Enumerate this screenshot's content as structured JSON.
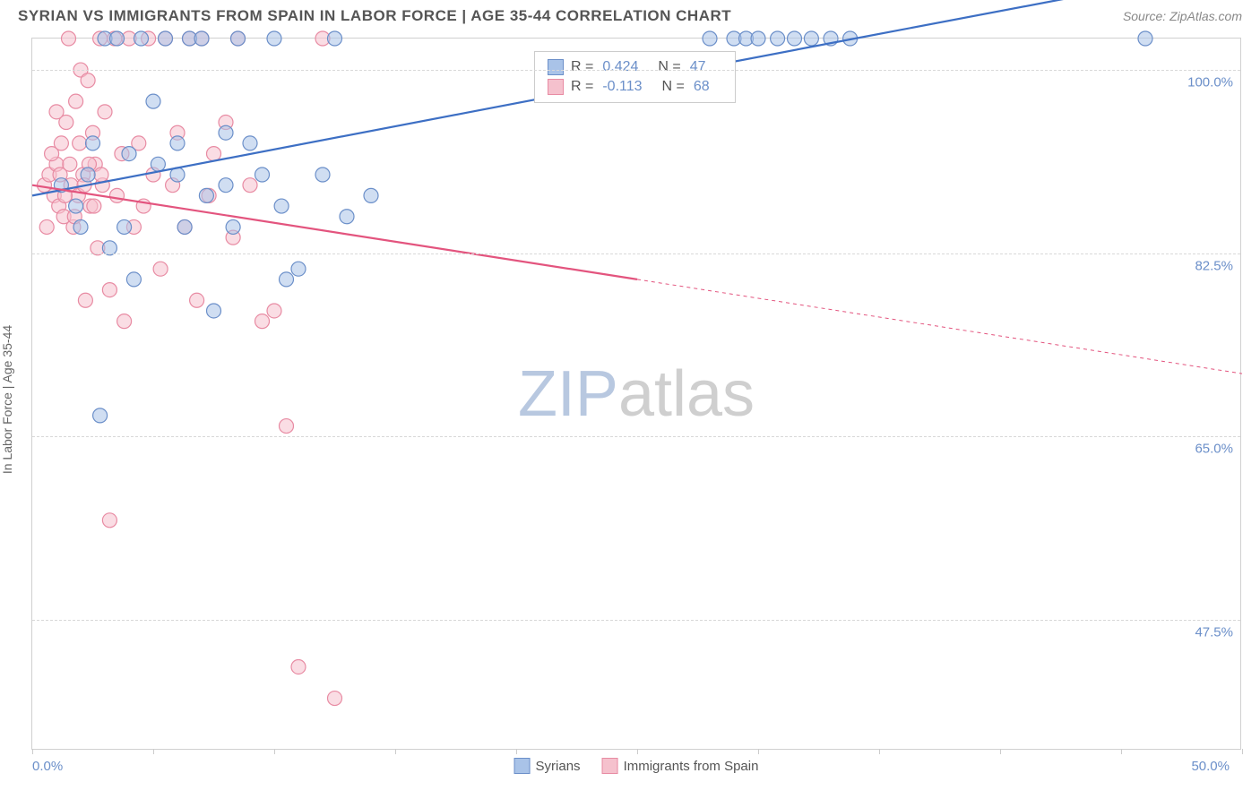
{
  "header": {
    "title": "SYRIAN VS IMMIGRANTS FROM SPAIN IN LABOR FORCE | AGE 35-44 CORRELATION CHART",
    "source": "Source: ZipAtlas.com"
  },
  "chart": {
    "type": "scatter",
    "y_axis_label": "In Labor Force | Age 35-44",
    "watermark_zip": "ZIP",
    "watermark_atlas": "atlas",
    "xlim": [
      0,
      50
    ],
    "ylim": [
      35,
      103
    ],
    "x_ticks": [
      0,
      5,
      10,
      15,
      20,
      25,
      30,
      35,
      40,
      45,
      50
    ],
    "x_tick_labels": {
      "0": "0.0%",
      "50": "50.0%"
    },
    "y_ticks": [
      47.5,
      65.0,
      82.5,
      100.0
    ],
    "y_tick_labels": [
      "47.5%",
      "65.0%",
      "82.5%",
      "100.0%"
    ],
    "background_color": "#ffffff",
    "grid_color": "#d8d8d8",
    "colors": {
      "blue_fill": "#a9c3e8",
      "blue_stroke": "#6b8fc9",
      "pink_fill": "#f5c1cd",
      "pink_stroke": "#e88ba3",
      "blue_line": "#3d6fc4",
      "pink_line": "#e3547e"
    },
    "marker_radius": 8,
    "marker_opacity": 0.55,
    "line_width": 2.2,
    "series": [
      {
        "name": "Syrians",
        "color_key": "blue",
        "R": "0.424",
        "N": "47",
        "trend": {
          "x1": 0,
          "y1": 88,
          "x2": 34,
          "y2": 103,
          "extrap_x2": 50,
          "extrap_y2": 110
        },
        "points": [
          [
            1.2,
            89
          ],
          [
            1.8,
            87
          ],
          [
            2.0,
            85
          ],
          [
            2.3,
            90
          ],
          [
            2.5,
            93
          ],
          [
            3.0,
            103
          ],
          [
            3.2,
            83
          ],
          [
            3.5,
            103
          ],
          [
            3.8,
            85
          ],
          [
            4.0,
            92
          ],
          [
            4.2,
            80
          ],
          [
            4.5,
            103
          ],
          [
            5.0,
            97
          ],
          [
            5.2,
            91
          ],
          [
            5.5,
            103
          ],
          [
            6.0,
            90
          ],
          [
            6.3,
            85
          ],
          [
            6.5,
            103
          ],
          [
            7.0,
            103
          ],
          [
            7.2,
            88
          ],
          [
            7.5,
            77
          ],
          [
            8.0,
            89
          ],
          [
            8.3,
            85
          ],
          [
            8.5,
            103
          ],
          [
            9.0,
            93
          ],
          [
            9.5,
            90
          ],
          [
            10.0,
            103
          ],
          [
            10.3,
            87
          ],
          [
            10.5,
            80
          ],
          [
            11.0,
            81
          ],
          [
            12.0,
            90
          ],
          [
            12.5,
            103
          ],
          [
            13.0,
            86
          ],
          [
            14.0,
            88
          ],
          [
            28.0,
            103
          ],
          [
            29.0,
            103
          ],
          [
            29.5,
            103
          ],
          [
            30.0,
            103
          ],
          [
            30.8,
            103
          ],
          [
            31.5,
            103
          ],
          [
            32.2,
            103
          ],
          [
            33.0,
            103
          ],
          [
            33.8,
            103
          ],
          [
            2.8,
            67
          ],
          [
            6.0,
            93
          ],
          [
            8.0,
            94
          ],
          [
            46.0,
            103
          ]
        ]
      },
      {
        "name": "Immigrants from Spain",
        "color_key": "pink",
        "R": "-0.113",
        "N": "68",
        "trend": {
          "x1": 0,
          "y1": 89,
          "x2": 25,
          "y2": 80,
          "extrap_x2": 50,
          "extrap_y2": 71
        },
        "points": [
          [
            0.5,
            89
          ],
          [
            0.7,
            90
          ],
          [
            0.9,
            88
          ],
          [
            1.0,
            91
          ],
          [
            1.1,
            87
          ],
          [
            1.2,
            93
          ],
          [
            1.3,
            86
          ],
          [
            1.4,
            95
          ],
          [
            1.5,
            103
          ],
          [
            1.6,
            89
          ],
          [
            1.7,
            85
          ],
          [
            1.8,
            97
          ],
          [
            1.9,
            88
          ],
          [
            2.0,
            100
          ],
          [
            2.1,
            90
          ],
          [
            2.2,
            78
          ],
          [
            2.3,
            99
          ],
          [
            2.4,
            87
          ],
          [
            2.5,
            94
          ],
          [
            2.6,
            91
          ],
          [
            2.7,
            83
          ],
          [
            2.8,
            103
          ],
          [
            2.9,
            89
          ],
          [
            3.0,
            96
          ],
          [
            3.2,
            79
          ],
          [
            3.4,
            103
          ],
          [
            3.5,
            88
          ],
          [
            3.7,
            92
          ],
          [
            3.8,
            76
          ],
          [
            4.0,
            103
          ],
          [
            4.2,
            85
          ],
          [
            4.4,
            93
          ],
          [
            4.6,
            87
          ],
          [
            4.8,
            103
          ],
          [
            5.0,
            90
          ],
          [
            5.3,
            81
          ],
          [
            5.5,
            103
          ],
          [
            5.8,
            89
          ],
          [
            6.0,
            94
          ],
          [
            6.3,
            85
          ],
          [
            6.5,
            103
          ],
          [
            6.8,
            78
          ],
          [
            7.0,
            103
          ],
          [
            7.3,
            88
          ],
          [
            7.5,
            92
          ],
          [
            8.0,
            95
          ],
          [
            8.3,
            84
          ],
          [
            8.5,
            103
          ],
          [
            9.0,
            89
          ],
          [
            9.5,
            76
          ],
          [
            10.0,
            77
          ],
          [
            10.5,
            66
          ],
          [
            11.0,
            43
          ],
          [
            12.0,
            103
          ],
          [
            12.5,
            40
          ],
          [
            3.2,
            57
          ],
          [
            0.6,
            85
          ],
          [
            0.8,
            92
          ],
          [
            1.0,
            96
          ],
          [
            1.15,
            90
          ],
          [
            1.35,
            88
          ],
          [
            1.55,
            91
          ],
          [
            1.75,
            86
          ],
          [
            1.95,
            93
          ],
          [
            2.15,
            89
          ],
          [
            2.35,
            91
          ],
          [
            2.55,
            87
          ],
          [
            2.85,
            90
          ]
        ]
      }
    ],
    "bottom_legend": [
      {
        "label": "Syrians",
        "color_key": "blue"
      },
      {
        "label": "Immigrants from Spain",
        "color_key": "pink"
      }
    ]
  }
}
